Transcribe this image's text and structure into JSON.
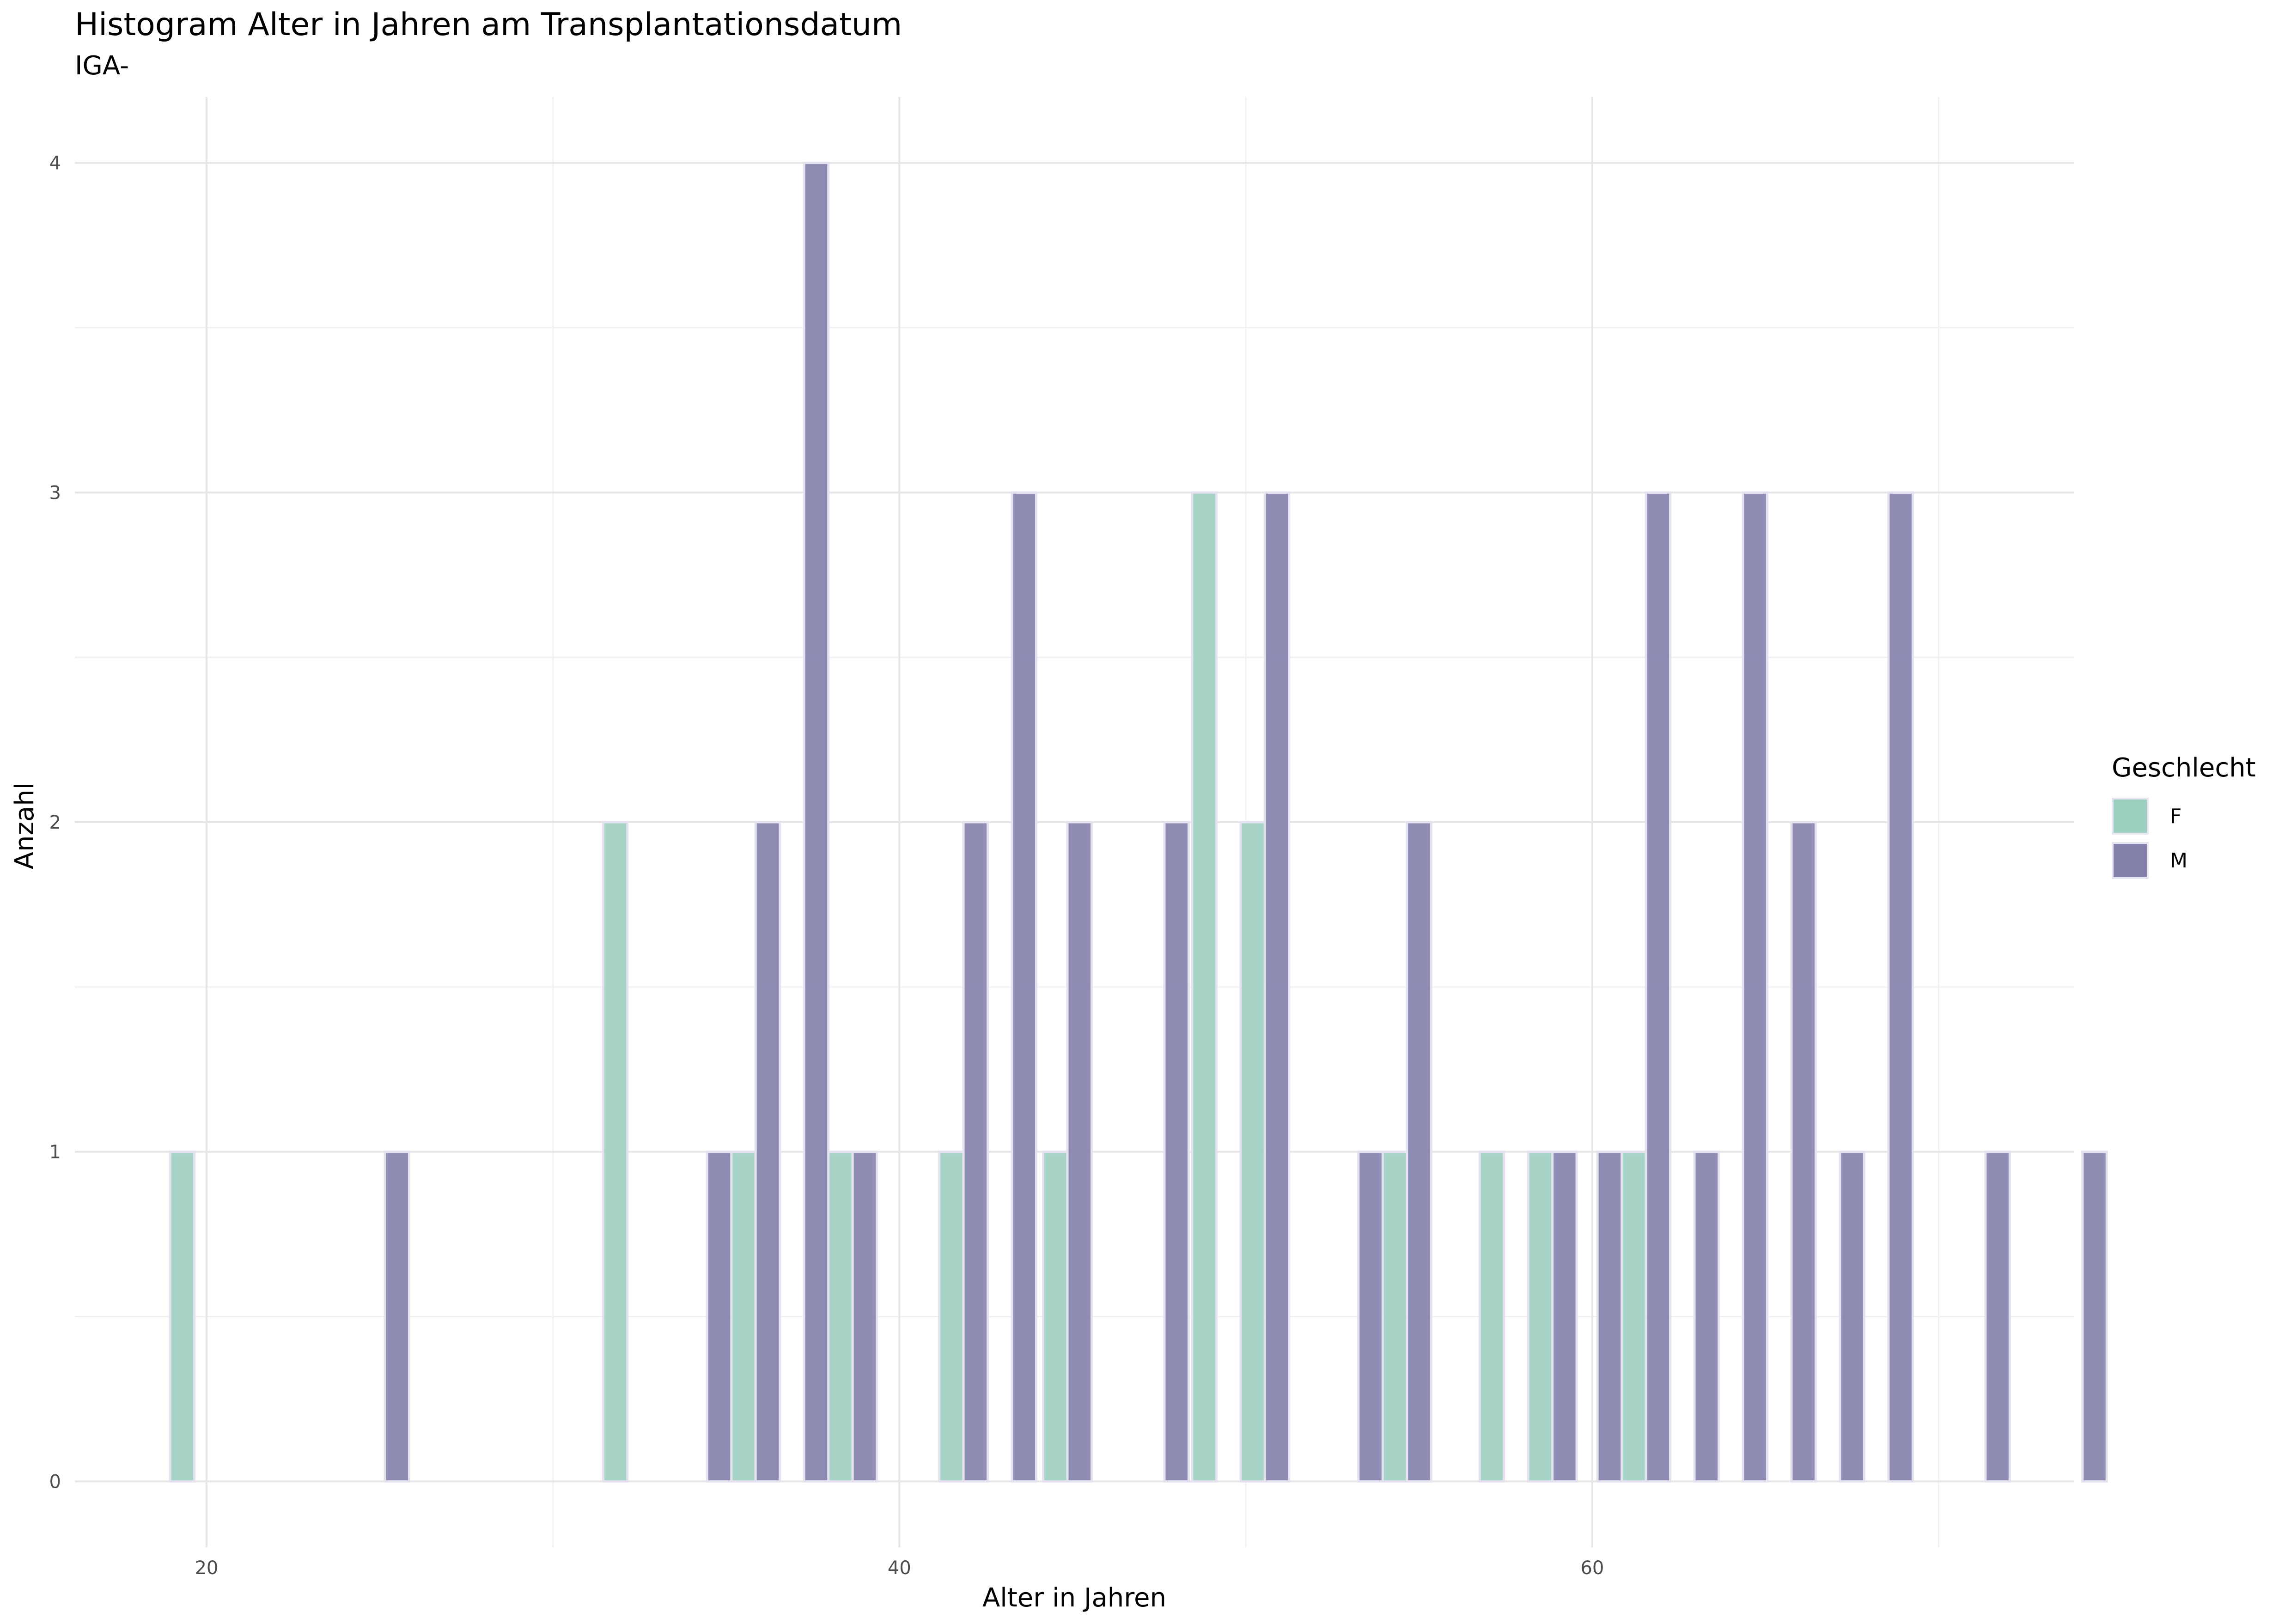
{
  "chart_data": {
    "type": "bar",
    "title": "Histogram Alter in Jahren am Transplantationsdatum",
    "subtitle": "IGA-",
    "xlabel": "Alter in Jahren",
    "ylabel": "Anzahl",
    "xlim": [
      16.2,
      73.9
    ],
    "ylim": [
      -0.2,
      4.2
    ],
    "x_ticks": [
      20,
      40,
      60
    ],
    "y_ticks": [
      0,
      1,
      2,
      3,
      4
    ],
    "grid": true,
    "legend": {
      "title": "Geschlecht",
      "position": "right"
    },
    "bin_width": 0.7,
    "series": [
      {
        "name": "F",
        "color": "#9dcfc1",
        "points": [
          {
            "x": 19.3,
            "y": 1
          },
          {
            "x": 31.8,
            "y": 2
          },
          {
            "x": 35.5,
            "y": 1
          },
          {
            "x": 38.3,
            "y": 1
          },
          {
            "x": 41.5,
            "y": 1
          },
          {
            "x": 44.5,
            "y": 1
          },
          {
            "x": 48.8,
            "y": 3
          },
          {
            "x": 50.2,
            "y": 2
          },
          {
            "x": 54.3,
            "y": 1
          },
          {
            "x": 57.1,
            "y": 1
          },
          {
            "x": 58.5,
            "y": 1
          },
          {
            "x": 61.2,
            "y": 1
          }
        ]
      },
      {
        "name": "M",
        "color": "#8381ac",
        "points": [
          {
            "x": 25.5,
            "y": 1
          },
          {
            "x": 34.8,
            "y": 1
          },
          {
            "x": 36.2,
            "y": 2
          },
          {
            "x": 37.6,
            "y": 4
          },
          {
            "x": 39.0,
            "y": 1
          },
          {
            "x": 42.2,
            "y": 2
          },
          {
            "x": 43.6,
            "y": 3
          },
          {
            "x": 45.2,
            "y": 2
          },
          {
            "x": 48.0,
            "y": 2
          },
          {
            "x": 50.9,
            "y": 3
          },
          {
            "x": 53.6,
            "y": 1
          },
          {
            "x": 55.0,
            "y": 2
          },
          {
            "x": 59.2,
            "y": 1
          },
          {
            "x": 60.5,
            "y": 1
          },
          {
            "x": 61.9,
            "y": 3
          },
          {
            "x": 63.3,
            "y": 1
          },
          {
            "x": 64.7,
            "y": 3
          },
          {
            "x": 66.1,
            "y": 2
          },
          {
            "x": 67.5,
            "y": 1
          },
          {
            "x": 68.9,
            "y": 3
          },
          {
            "x": 71.7,
            "y": 1
          },
          {
            "x": 74.5,
            "y": 1
          }
        ]
      }
    ]
  }
}
